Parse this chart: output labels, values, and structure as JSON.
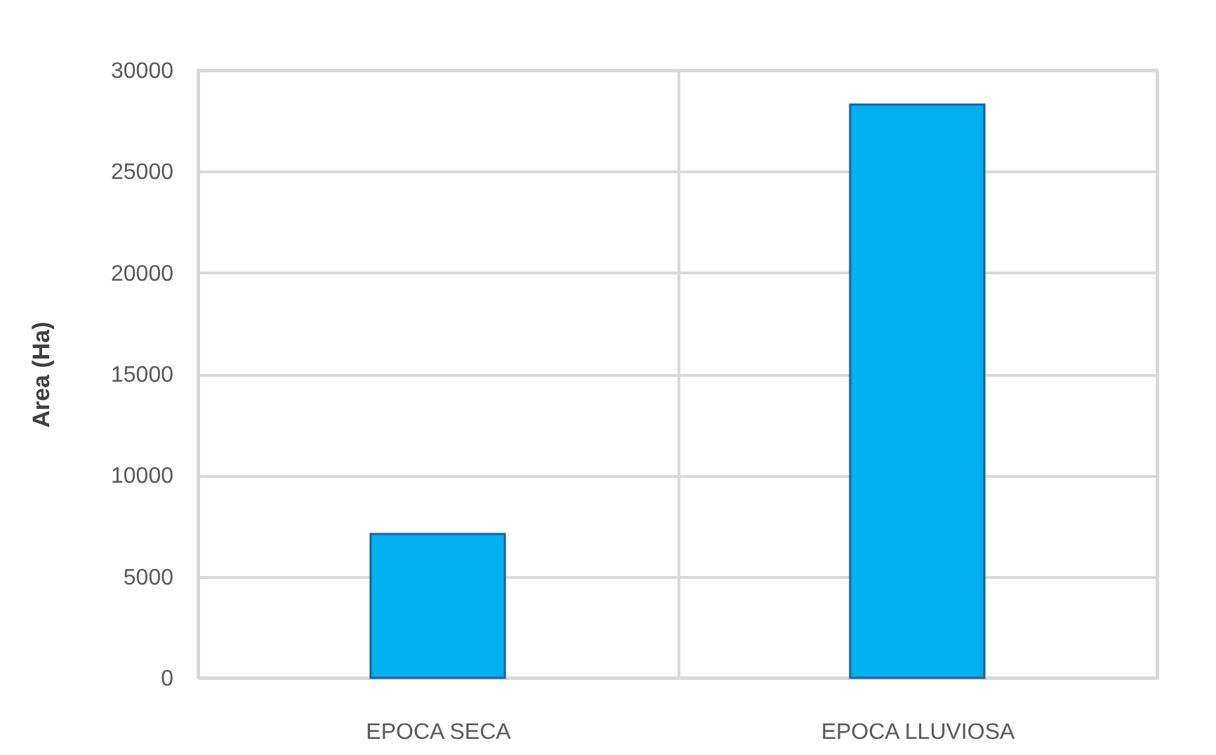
{
  "chart_data": {
    "type": "bar",
    "ylabel": "Area (Ha)",
    "categories": [
      "EPOCA SECA",
      "EPOCA LLUVIOSA"
    ],
    "values": [
      7100,
      28300
    ],
    "color": "#00b0f0",
    "ylim": [
      0,
      30000
    ],
    "yticks": [
      0,
      5000,
      10000,
      15000,
      20000,
      25000,
      30000
    ],
    "grid": true
  }
}
